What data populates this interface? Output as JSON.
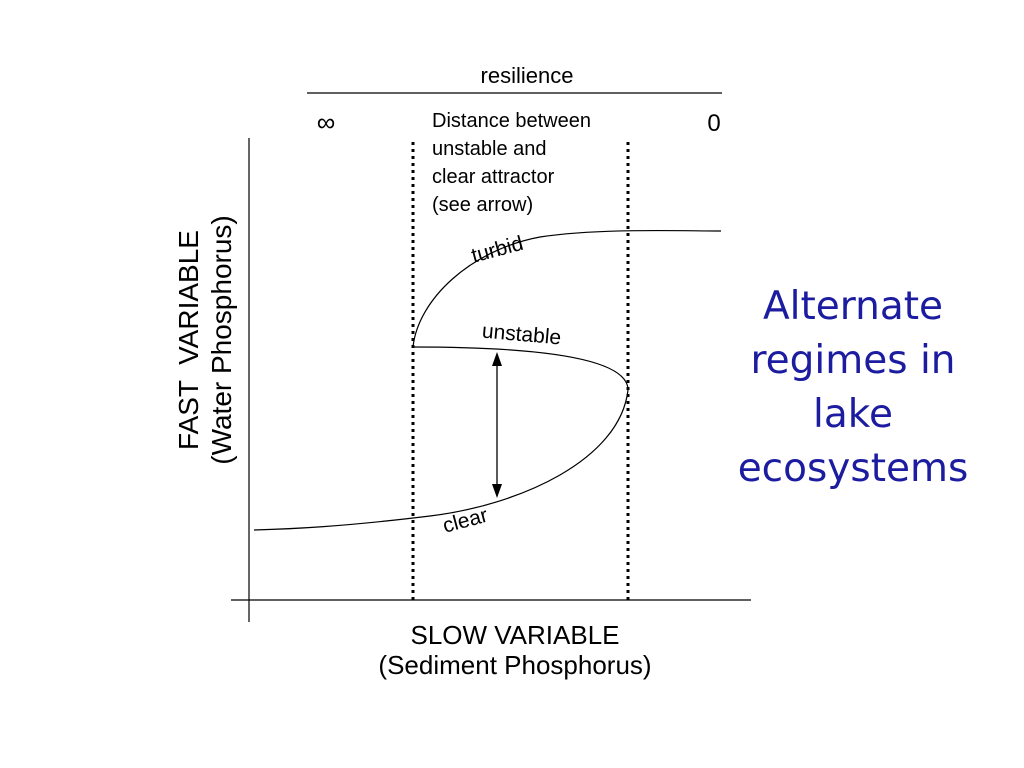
{
  "labels": {
    "resilience": "resilience",
    "infinity": "∞",
    "zero": "0",
    "distance_note": "Distance between\nunstable and\nclear attractor\n(see arrow)",
    "y_axis_line1": "FAST  VARIABLE",
    "y_axis_line2": "(Water Phosphorus)",
    "x_axis_line1": "SLOW VARIABLE",
    "x_axis_line2": "(Sediment Phosphorus)",
    "turbid": "turbid",
    "unstable": "unstable",
    "clear": "clear"
  },
  "side_title": "Alternate\nregimes in\nlake\necosystems",
  "colors": {
    "text": "#000000",
    "side_title": "#1c1ca0",
    "background": "#ffffff"
  }
}
